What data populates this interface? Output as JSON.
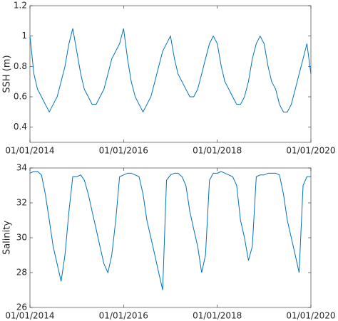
{
  "chart_data": [
    {
      "type": "line",
      "ylabel": "SSH (m)",
      "x": [
        "2014-01-01",
        "2014-02-01",
        "2014-03-01",
        "2014-04-01",
        "2014-05-01",
        "2014-06-01",
        "2014-07-01",
        "2014-08-01",
        "2014-09-01",
        "2014-10-01",
        "2014-11-01",
        "2014-12-01",
        "2015-01-01",
        "2015-02-01",
        "2015-03-01",
        "2015-04-01",
        "2015-05-01",
        "2015-06-01",
        "2015-07-01",
        "2015-08-01",
        "2015-09-01",
        "2015-10-01",
        "2015-11-01",
        "2015-12-01",
        "2016-01-01",
        "2016-02-01",
        "2016-03-01",
        "2016-04-01",
        "2016-05-01",
        "2016-06-01",
        "2016-07-01",
        "2016-08-01",
        "2016-09-01",
        "2016-10-01",
        "2016-11-01",
        "2016-12-01",
        "2017-01-01",
        "2017-02-01",
        "2017-03-01",
        "2017-04-01",
        "2017-05-01",
        "2017-06-01",
        "2017-07-01",
        "2017-08-01",
        "2017-09-01",
        "2017-10-01",
        "2017-11-01",
        "2017-12-01",
        "2018-01-01",
        "2018-02-01",
        "2018-03-01",
        "2018-04-01",
        "2018-05-01",
        "2018-06-01",
        "2018-07-01",
        "2018-08-01",
        "2018-09-01",
        "2018-10-01",
        "2018-11-01",
        "2018-12-01",
        "2019-01-01",
        "2019-02-01",
        "2019-03-01",
        "2019-04-01",
        "2019-05-01",
        "2019-06-01",
        "2019-07-01",
        "2019-08-01",
        "2019-09-01",
        "2019-10-01",
        "2019-11-01",
        "2019-12-01",
        "2020-01-01"
      ],
      "series": [
        {
          "color": "#0072bd",
          "values": [
            1.0,
            0.75,
            0.65,
            0.6,
            0.55,
            0.5,
            0.55,
            0.6,
            0.7,
            0.8,
            0.95,
            1.05,
            0.9,
            0.75,
            0.65,
            0.6,
            0.55,
            0.55,
            0.6,
            0.65,
            0.75,
            0.85,
            0.9,
            0.95,
            1.05,
            0.85,
            0.7,
            0.6,
            0.55,
            0.5,
            0.55,
            0.6,
            0.7,
            0.8,
            0.9,
            0.95,
            1.0,
            0.85,
            0.75,
            0.7,
            0.65,
            0.6,
            0.6,
            0.65,
            0.75,
            0.85,
            0.95,
            1.0,
            0.95,
            0.8,
            0.7,
            0.65,
            0.6,
            0.55,
            0.55,
            0.6,
            0.7,
            0.85,
            0.95,
            1.0,
            0.95,
            0.8,
            0.7,
            0.65,
            0.55,
            0.5,
            0.5,
            0.55,
            0.65,
            0.75,
            0.85,
            0.95,
            0.75
          ]
        }
      ],
      "xlim": [
        "2014-01-01",
        "2020-01-01"
      ],
      "xticks": [
        {
          "value": "2014-01-01",
          "label": "01/01/2014"
        },
        {
          "value": "2016-01-01",
          "label": "01/01/2016"
        },
        {
          "value": "2018-01-01",
          "label": "01/01/2018"
        },
        {
          "value": "2020-01-01",
          "label": "01/01/2020"
        }
      ],
      "ylim": [
        0.3,
        1.2
      ],
      "yticks": [
        0.4,
        0.6,
        0.8,
        1,
        1.2
      ]
    },
    {
      "type": "line",
      "ylabel": "Salinity",
      "x": [
        "2014-01-01",
        "2014-02-01",
        "2014-03-01",
        "2014-04-01",
        "2014-05-01",
        "2014-06-01",
        "2014-07-01",
        "2014-08-01",
        "2014-09-01",
        "2014-10-01",
        "2014-11-01",
        "2014-12-01",
        "2015-01-01",
        "2015-02-01",
        "2015-03-01",
        "2015-04-01",
        "2015-05-01",
        "2015-06-01",
        "2015-07-01",
        "2015-08-01",
        "2015-09-01",
        "2015-10-01",
        "2015-11-01",
        "2015-12-01",
        "2016-01-01",
        "2016-02-01",
        "2016-03-01",
        "2016-04-01",
        "2016-05-01",
        "2016-06-01",
        "2016-07-01",
        "2016-08-01",
        "2016-09-01",
        "2016-10-01",
        "2016-11-01",
        "2016-12-01",
        "2017-01-01",
        "2017-02-01",
        "2017-03-01",
        "2017-04-01",
        "2017-05-01",
        "2017-06-01",
        "2017-07-01",
        "2017-08-01",
        "2017-09-01",
        "2017-10-01",
        "2017-11-01",
        "2017-12-01",
        "2018-01-01",
        "2018-02-01",
        "2018-03-01",
        "2018-04-01",
        "2018-05-01",
        "2018-06-01",
        "2018-07-01",
        "2018-08-01",
        "2018-09-01",
        "2018-10-01",
        "2018-11-01",
        "2018-12-01",
        "2019-01-01",
        "2019-02-01",
        "2019-03-01",
        "2019-04-01",
        "2019-05-01",
        "2019-06-01",
        "2019-07-01",
        "2019-08-01",
        "2019-09-01",
        "2019-10-01",
        "2019-11-01",
        "2019-12-01",
        "2020-01-01"
      ],
      "series": [
        {
          "color": "#0072bd",
          "values": [
            33.7,
            33.8,
            33.8,
            33.6,
            32.5,
            31,
            29.5,
            28.5,
            27.5,
            29,
            31.5,
            33.5,
            33.5,
            33.6,
            33.3,
            32.5,
            31.5,
            30.5,
            29.5,
            28.5,
            28,
            29,
            31,
            33.5,
            33.6,
            33.7,
            33.7,
            33.6,
            33.5,
            32.5,
            31,
            30,
            29,
            28,
            27,
            33.3,
            33.6,
            33.7,
            33.7,
            33.5,
            33,
            31.5,
            30.5,
            29.5,
            28,
            29,
            33.3,
            33.7,
            33.7,
            33.8,
            33.7,
            33.6,
            33.5,
            33,
            31,
            30,
            28.7,
            29.5,
            33.5,
            33.6,
            33.6,
            33.7,
            33.7,
            33.7,
            33.6,
            32.5,
            31,
            30,
            29,
            28,
            33,
            33.5,
            33.5
          ]
        }
      ],
      "xlim": [
        "2014-01-01",
        "2020-01-01"
      ],
      "xticks": [
        {
          "value": "2014-01-01",
          "label": "01/01/2014"
        },
        {
          "value": "2016-01-01",
          "label": "01/01/2016"
        },
        {
          "value": "2018-01-01",
          "label": "01/01/2018"
        },
        {
          "value": "2020-01-01",
          "label": "01/01/2020"
        }
      ],
      "ylim": [
        26,
        34
      ],
      "yticks": [
        26,
        28,
        30,
        32,
        34
      ]
    }
  ]
}
